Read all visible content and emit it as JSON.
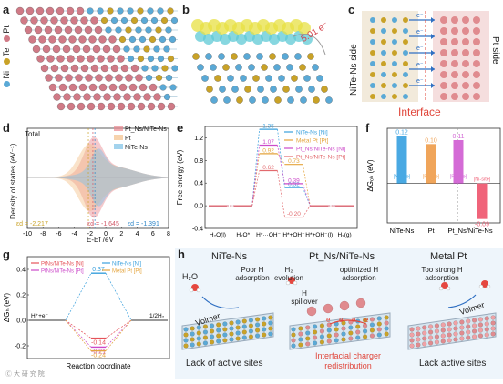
{
  "panel_labels": {
    "a": "a",
    "b": "b",
    "c": "c",
    "d": "d",
    "e": "e",
    "f": "f",
    "g": "g",
    "h": "h"
  },
  "panel_a": {
    "legend": [
      {
        "label": "Ni",
        "color": "#5aa9d6"
      },
      {
        "label": "Te",
        "color": "#c9a227"
      },
      {
        "label": "Pt",
        "color": "#d07a86"
      }
    ]
  },
  "panel_b": {
    "annotation": "5.01 e⁻"
  },
  "panel_c": {
    "left_label": "NiTe-Ns side",
    "right_label": "Pt side",
    "bottom_label": "Interface",
    "electron": "e⁻",
    "colors": {
      "interface": "#e0453a",
      "arrow": "#2f6fc2"
    }
  },
  "panel_d": {
    "total_label": "Total",
    "ylabel": "Density of states (eV⁻¹)",
    "xlabel": "E-Ef /eV",
    "legend": [
      {
        "label": "Pt_Ns/NiTe-Ns",
        "color": "#e8888f"
      },
      {
        "label": "Pt",
        "color": "#f3c08a"
      },
      {
        "label": "NiTe-Ns",
        "color": "#7cc1e6"
      }
    ],
    "d_centers": [
      {
        "label": "εd = -2.217",
        "color": "#c9a227"
      },
      {
        "label": "εd = -1.645",
        "color": "#d05a6a"
      },
      {
        "label": "εd = -1.391",
        "color": "#2f86c7"
      }
    ]
  },
  "panel_h": {
    "headers": [
      "NiTe-Ns",
      "Pt_Ns/NiTe-Ns",
      "Metal Pt"
    ],
    "texts": {
      "h2o": "H₂O",
      "poor": "Poor H adsorption",
      "volmer": "Volmer",
      "h2evo": "H₂ evolution",
      "spill": "H spillover",
      "opt": "optimized H adsorption",
      "strong": "Too strong H adsorption",
      "lack1": "Lack of active sites",
      "lack2": "Lack active sites",
      "interfacial": "Interfacial charger redistribution",
      "watermark": "Ⓒ 大 研 究 院"
    }
  },
  "chart_data": [
    {
      "id": "e",
      "type": "line",
      "ylabel": "Free energy (eV)",
      "ylim": [
        -0.4,
        1.4
      ],
      "yticks": [
        -0.4,
        0.0,
        0.4,
        0.8,
        1.2
      ],
      "categories": [
        "H₂O(l)",
        "H₂O*",
        "H*···OH⁻",
        "H*+OH⁻",
        "H*+OH⁻(l)",
        "H₂(g)"
      ],
      "series": [
        {
          "name": "NiTe-Ns [Ni]",
          "color": "#3aa0dd",
          "values": [
            0,
            0,
            1.35,
            0.32,
            0,
            0
          ],
          "labels": [
            "",
            "",
            "1.35",
            "0.32",
            "",
            ""
          ]
        },
        {
          "name": "Metal Pt [Pt]",
          "color": "#e4a43d",
          "values": [
            0,
            0,
            0.92,
            0.73,
            0,
            0
          ],
          "labels": [
            "",
            "",
            "0.92",
            "0.73",
            "",
            ""
          ]
        },
        {
          "name": "Pt_Ns/NiTe-Ns [Ni]",
          "color": "#cc4ac9",
          "values": [
            0,
            0,
            1.07,
            0.39,
            0,
            0
          ],
          "labels": [
            "",
            "",
            "1.07",
            "0.39",
            "",
            ""
          ]
        },
        {
          "name": "Pt_Ns/NiTe-Ns [Pt]",
          "color": "#e26a6e",
          "values": [
            0,
            0,
            0.62,
            -0.2,
            0,
            0
          ],
          "labels": [
            "",
            "",
            "0.62",
            "-0.20",
            "",
            ""
          ]
        }
      ]
    },
    {
      "id": "f",
      "type": "bar",
      "ylabel": "ΔGₒₕ (eV)",
      "ylim": [
        -0.1,
        0.14
      ],
      "categories": [
        "NiTe-Ns",
        "Pt",
        "Pt_Ns/NiTe-Ns",
        "Pt_Ns/NiTe-Ns"
      ],
      "group_labels": [
        "NiTe-Ns",
        "Pt",
        "Pt_Ns/NiTe-Ns"
      ],
      "values": [
        0.12,
        0.1,
        0.11,
        -0.09
      ],
      "value_labels": [
        "0.12",
        "0.10",
        "0.11",
        "-0.09"
      ],
      "site_labels": [
        "[Ni-site]",
        "[Pt-site]",
        "[Pt-site]",
        "[Ni-site]"
      ],
      "colors": [
        "#49a9e3",
        "#f0a55a",
        "#d46bd6",
        "#f0647a"
      ]
    },
    {
      "id": "g",
      "type": "line",
      "ylabel": "ΔGₕ (eV)",
      "xlabel": "Reaction coordinate",
      "ylim": [
        -0.3,
        0.5
      ],
      "yticks": [
        -0.2,
        0.0,
        0.2,
        0.4
      ],
      "left_label": "H⁺+e⁻",
      "right_label": "1/2H₂",
      "series": [
        {
          "name": "PtNs/NiTe-Ns [Ni]",
          "color": "#e5535a",
          "value": -0.14,
          "label": "-0.14"
        },
        {
          "name": "NiTe-Ns [Ni]",
          "color": "#3aa0dd",
          "value": 0.37,
          "label": "0.37"
        },
        {
          "name": "PtNs/NiTe-Ns [Pt]",
          "color": "#cc4ac9",
          "value": -0.21,
          "label": "-0.21"
        },
        {
          "name": "Metal Pt [Pt]",
          "color": "#e4a43d",
          "value": -0.24,
          "label": "-0.24"
        }
      ]
    }
  ]
}
